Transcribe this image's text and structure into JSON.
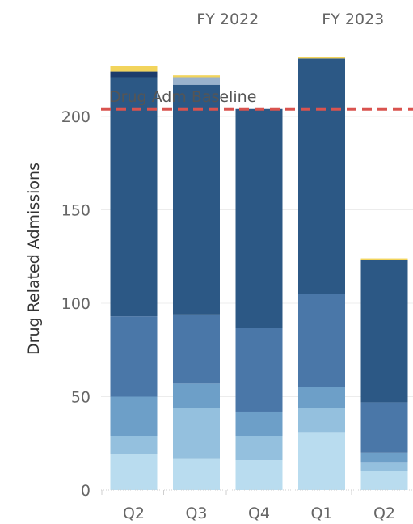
{
  "chart_data": {
    "type": "bar",
    "stacked": true,
    "ylabel": "Drug Related Admissions",
    "xlabel": "",
    "ylim": [
      0,
      230
    ],
    "yticks": [
      0,
      50,
      100,
      150,
      200
    ],
    "grid": true,
    "legend": "none",
    "column_headers": [
      {
        "label": "FY 2022",
        "span": [
          1,
          2
        ]
      },
      {
        "label": "FY 2023",
        "span": [
          3,
          4
        ]
      }
    ],
    "categories": [
      "Q2",
      "Q3",
      "Q4",
      "Q1",
      "Q2"
    ],
    "series": [
      {
        "color": "#b9dcef",
        "values": [
          19,
          17,
          16,
          31,
          10
        ]
      },
      {
        "color": "#94c0de",
        "values": [
          10,
          27,
          13,
          13,
          5
        ]
      },
      {
        "color": "#6d9fc8",
        "values": [
          21,
          13,
          13,
          11,
          5
        ]
      },
      {
        "color": "#4a77a8",
        "values": [
          43,
          37,
          45,
          50,
          27
        ]
      },
      {
        "color": "#2c5885",
        "values": [
          128,
          123,
          117,
          126,
          76
        ]
      },
      {
        "color": "#9ab2cc",
        "values": [
          0,
          4,
          0,
          0,
          0
        ]
      },
      {
        "color": "#1d3c6b",
        "values": [
          3,
          0,
          0,
          0,
          0
        ]
      },
      {
        "color": "#f2d45c",
        "values": [
          3,
          1,
          0,
          1,
          1
        ]
      }
    ],
    "reference_line": {
      "label": "Drug Adm Baseline",
      "value": 204,
      "color": "#d9534f",
      "style": "dashed"
    }
  }
}
